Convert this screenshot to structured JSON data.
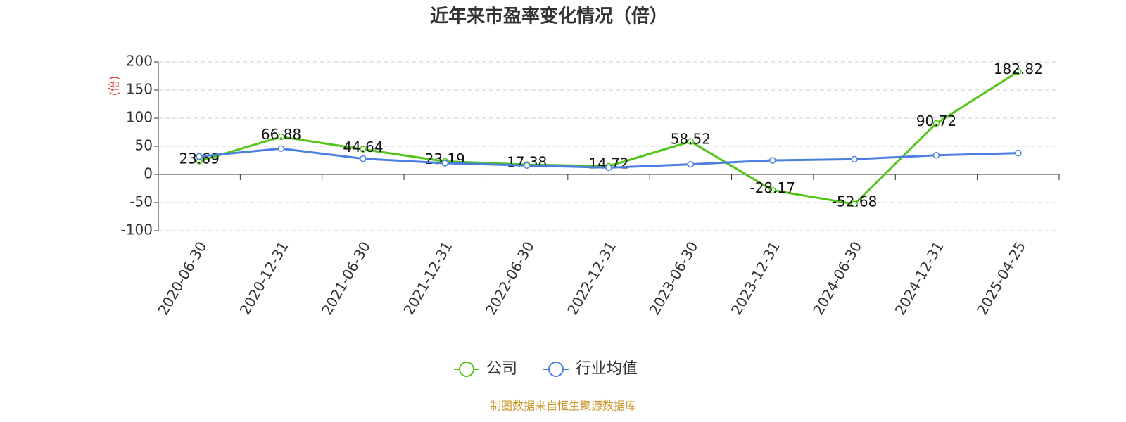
{
  "chart_data": {
    "type": "line",
    "title": "近年来市盈率变化情况（倍）",
    "y_unit": "(倍)",
    "categories": [
      "2020-06-30",
      "2020-12-31",
      "2021-06-30",
      "2021-12-31",
      "2022-06-30",
      "2022-12-31",
      "2023-06-30",
      "2023-12-31",
      "2024-06-30",
      "2024-12-31",
      "2025-04-25"
    ],
    "series": [
      {
        "name": "公司",
        "color": "#52c41a",
        "values": [
          23.69,
          66.88,
          44.64,
          23.19,
          17.38,
          14.72,
          58.52,
          -28.17,
          -52.68,
          90.72,
          182.82
        ],
        "show_labels": true
      },
      {
        "name": "行业均值",
        "color": "#4a7fe0",
        "values": [
          32,
          46,
          28,
          20,
          16,
          12,
          18,
          25,
          27,
          34,
          38
        ],
        "show_labels": false
      }
    ],
    "ylim": [
      -100,
      200
    ],
    "yticks": [
      -100,
      -50,
      0,
      50,
      100,
      150,
      200
    ],
    "grid": true,
    "legend": "bottom",
    "source": "制图数据来自恒生聚源数据库"
  }
}
